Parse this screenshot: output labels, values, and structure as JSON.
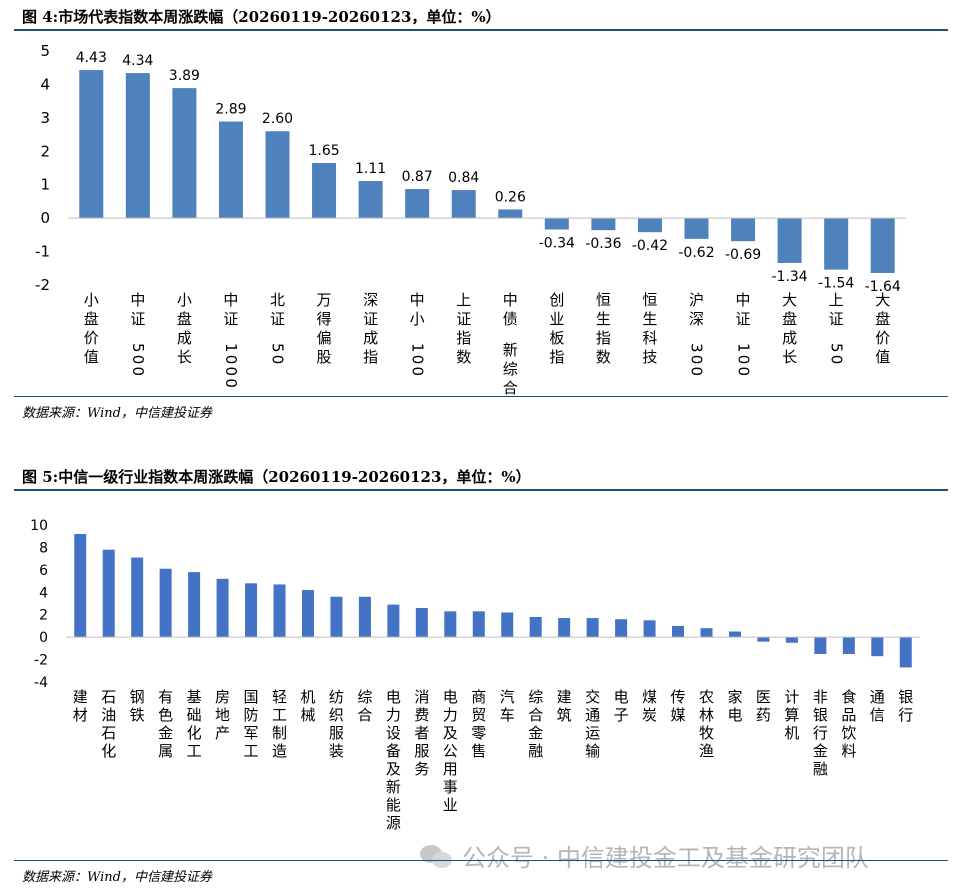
{
  "figures": [
    {
      "title": "图 4:市场代表指数本周涨跌幅（20260119-20260123，单位：%）",
      "source": "数据来源：Wind，中信建投证券"
    },
    {
      "title": "图 5:中信一级行业指数本周涨跌幅（20260119-20260123，单位：%）",
      "source": "数据来源：Wind，中信建投证券"
    }
  ],
  "watermark": "公众号 · 中信建投金工及基金研究团队",
  "chart_data": [
    {
      "type": "bar",
      "bar_color": "#4f81bd",
      "categories": [
        "小盘价值",
        "中证500",
        "小盘成长",
        "中证1000",
        "北证50",
        "万得偏股",
        "深证成指",
        "中小100",
        "上证指数",
        "中债-新综合",
        "创业板指",
        "恒生指数",
        "恒生科技",
        "沪深300",
        "中证100",
        "大盘成长",
        "上证50",
        "大盘价值"
      ],
      "values": [
        4.43,
        4.34,
        3.89,
        2.89,
        2.6,
        1.65,
        1.11,
        0.87,
        0.84,
        0.26,
        -0.34,
        -0.36,
        -0.42,
        -0.62,
        -0.69,
        -1.34,
        -1.54,
        -1.64
      ],
      "value_labels": [
        "4.43",
        "4.34",
        "3.89",
        "2.89",
        "2.60",
        "1.65",
        "1.11",
        "0.87",
        "0.84",
        "0.26",
        "-0.34",
        "-0.36",
        "-0.42",
        "-0.62",
        "-0.69",
        "-1.34",
        "-1.54",
        "-1.64"
      ],
      "ylim": [
        -2,
        5
      ],
      "yticks": [
        -2,
        -1,
        0,
        1,
        2,
        3,
        4,
        5
      ],
      "grid": false
    },
    {
      "type": "bar",
      "bar_color": "#4472c4",
      "categories": [
        "建材",
        "石油石化",
        "钢铁",
        "有色金属",
        "基础化工",
        "房地产",
        "国防军工",
        "轻工制造",
        "机械",
        "纺织服装",
        "综合",
        "电力设备及新能源",
        "消费者服务",
        "电力及公用事业",
        "商贸零售",
        "汽车",
        "综合金融",
        "建筑",
        "交通运输",
        "电子",
        "煤炭",
        "传媒",
        "农林牧渔",
        "家电",
        "医药",
        "计算机",
        "非银行金融",
        "食品饮料",
        "通信",
        "银行"
      ],
      "values": [
        9.2,
        7.8,
        7.1,
        6.1,
        5.8,
        5.2,
        4.8,
        4.7,
        4.2,
        3.6,
        3.6,
        2.9,
        2.6,
        2.3,
        2.3,
        2.2,
        1.8,
        1.7,
        1.7,
        1.6,
        1.5,
        1.0,
        0.8,
        0.5,
        -0.4,
        -0.5,
        -1.5,
        -1.5,
        -1.7,
        -2.7
      ],
      "ylim": [
        -4,
        10
      ],
      "yticks": [
        -4,
        -2,
        0,
        2,
        4,
        6,
        8,
        10
      ],
      "grid": false
    }
  ]
}
